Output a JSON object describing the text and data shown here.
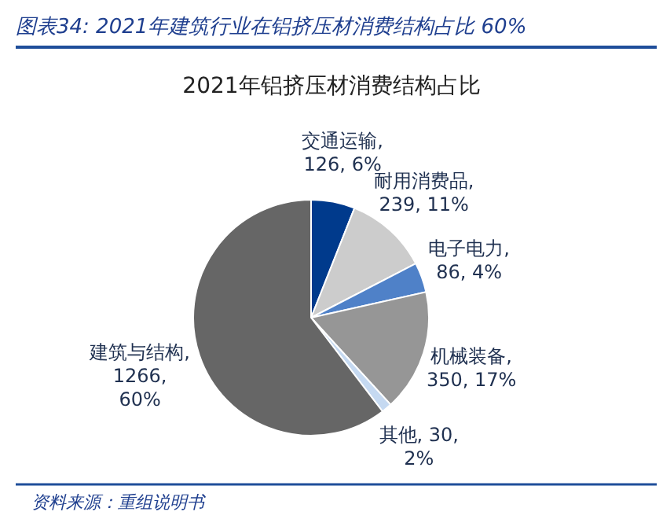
{
  "chart_data": {
    "type": "pie",
    "title": "图表34:  2021年建筑行业在铝挤压材消费结构占比 60%",
    "subtitle": "2021年铝挤压材消费结构占比",
    "categories": [
      "交通运输",
      "耐用消费品",
      "电子电力",
      "机械装备",
      "其他",
      "建筑与结构"
    ],
    "values": [
      126,
      239,
      86,
      350,
      30,
      1266
    ],
    "value_labels": [
      ", 126, 6%",
      ", 239, 11%",
      ", 86, 4%",
      ", 350, 17%",
      ", 30, 2%",
      ", 1266, 60%"
    ],
    "colors": [
      "#003a8c",
      "#cccccc",
      "#4f81c8",
      "#969696",
      "#c5d9f1",
      "#666666"
    ],
    "annotations": [
      "资料来源：重组说明书"
    ]
  }
}
